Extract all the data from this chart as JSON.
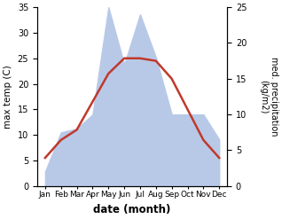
{
  "months": [
    "Jan",
    "Feb",
    "Mar",
    "Apr",
    "May",
    "Jun",
    "Jul",
    "Aug",
    "Sep",
    "Oct",
    "Nov",
    "Dec"
  ],
  "month_positions": [
    0,
    1,
    2,
    3,
    4,
    5,
    6,
    7,
    8,
    9,
    10,
    11
  ],
  "temperature": [
    5.5,
    9.0,
    11.0,
    16.5,
    22.0,
    25.0,
    25.0,
    24.5,
    21.0,
    15.0,
    9.0,
    5.5
  ],
  "precipitation": [
    2.0,
    7.5,
    8.0,
    10.0,
    25.0,
    17.0,
    24.0,
    18.0,
    10.0,
    10.0,
    10.0,
    6.5
  ],
  "temp_color": "#c0392b",
  "precip_color": "#b8c9e8",
  "temp_ylim": [
    0,
    35
  ],
  "precip_ylim": [
    0,
    25
  ],
  "temp_yticks": [
    0,
    5,
    10,
    15,
    20,
    25,
    30,
    35
  ],
  "precip_yticks": [
    0,
    5,
    10,
    15,
    20,
    25
  ],
  "xlabel": "date (month)",
  "ylabel_left": "max temp (C)",
  "ylabel_right": "med. precipitation\n(kg/m2)",
  "background_color": "#ffffff",
  "line_width": 1.8
}
